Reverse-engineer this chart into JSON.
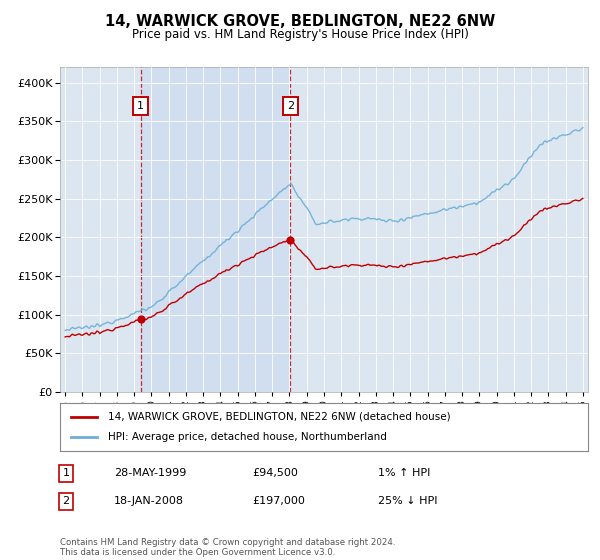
{
  "title": "14, WARWICK GROVE, BEDLINGTON, NE22 6NW",
  "subtitle": "Price paid vs. HM Land Registry's House Price Index (HPI)",
  "legend_line1": "14, WARWICK GROVE, BEDLINGTON, NE22 6NW (detached house)",
  "legend_line2": "HPI: Average price, detached house, Northumberland",
  "sale1_date": "28-MAY-1999",
  "sale1_price": 94500,
  "sale1_hpi": "1% ↑ HPI",
  "sale1_year": 1999.38,
  "sale2_date": "18-JAN-2008",
  "sale2_price": 197000,
  "sale2_hpi": "25% ↓ HPI",
  "sale2_year": 2008.05,
  "hpi_color": "#6baed6",
  "price_color": "#c00000",
  "annotation_box_color": "#c00000",
  "bg_color": "#dce6f1",
  "bg_between_color": "#c8d9ef",
  "footer": "Contains HM Land Registry data © Crown copyright and database right 2024.\nThis data is licensed under the Open Government Licence v3.0.",
  "ylim_max": 420000,
  "ytick_step": 50000
}
